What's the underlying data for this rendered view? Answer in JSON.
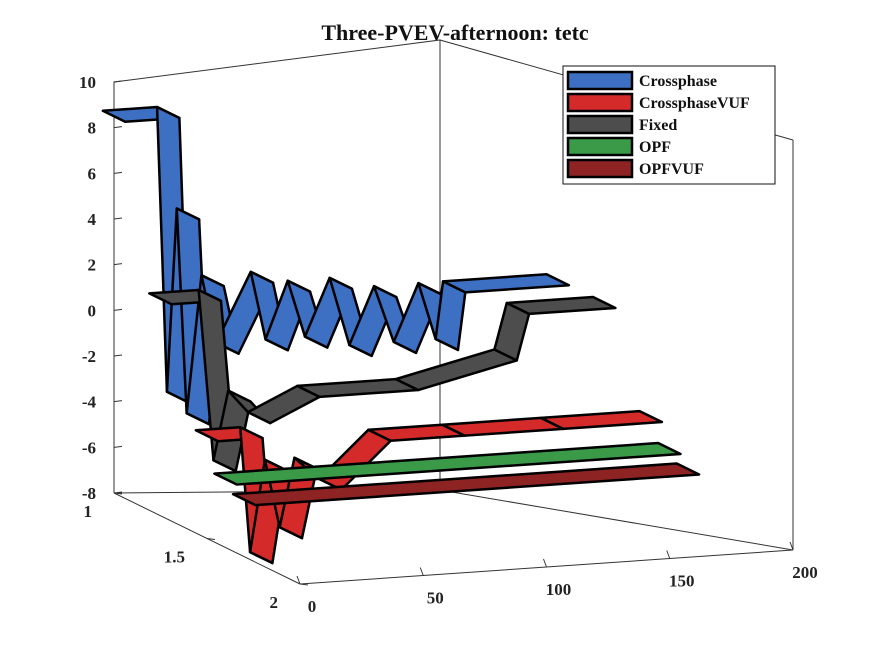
{
  "chart_data": {
    "type": "ribbon3d",
    "title": "Three-PVEV-afternoon: tetc",
    "xlabel": "",
    "ylabel": "",
    "zlabel": "",
    "xlim": [
      0,
      200
    ],
    "ylim": [
      1,
      2
    ],
    "zlim": [
      -8,
      10
    ],
    "xticks": [
      "0",
      "50",
      "100",
      "150",
      "200"
    ],
    "yticks": [
      "1",
      "1.5",
      "2"
    ],
    "zticks": [
      "-8",
      "-6",
      "-4",
      "-2",
      "0",
      "2",
      "4",
      "6",
      "8",
      "10"
    ],
    "legend_position": "top-right",
    "series": [
      {
        "name": "Crossphase",
        "color": "#3d6fc2",
        "y_position": 1.0,
        "profile": [
          {
            "x": 0,
            "v": 8.5
          },
          {
            "x": 22,
            "v": 8.5
          },
          {
            "x": 26,
            "v": -4
          },
          {
            "x": 30,
            "v": 4
          },
          {
            "x": 34,
            "v": -5
          },
          {
            "x": 40,
            "v": 1
          },
          {
            "x": 46,
            "v": -2
          },
          {
            "x": 60,
            "v": 1
          },
          {
            "x": 66,
            "v": -2
          },
          {
            "x": 75,
            "v": 0.5
          },
          {
            "x": 82,
            "v": -2
          },
          {
            "x": 92,
            "v": 0.5
          },
          {
            "x": 100,
            "v": -2.5
          },
          {
            "x": 110,
            "v": 0
          },
          {
            "x": 118,
            "v": -2.5
          },
          {
            "x": 128,
            "v": 0
          },
          {
            "x": 135,
            "v": -2.5
          },
          {
            "x": 138,
            "v": 0
          },
          {
            "x": 180,
            "v": 0
          }
        ]
      },
      {
        "name": "CrossphaseVUF",
        "color": "#d42a2a",
        "y_position": 1.5,
        "profile": [
          {
            "x": 0,
            "v": -3.5
          },
          {
            "x": 18,
            "v": -3.5
          },
          {
            "x": 22,
            "v": -9
          },
          {
            "x": 28,
            "v": -5
          },
          {
            "x": 34,
            "v": -8
          },
          {
            "x": 40,
            "v": -5
          },
          {
            "x": 50,
            "v": -6
          },
          {
            "x": 70,
            "v": -4
          },
          {
            "x": 100,
            "v": -4
          },
          {
            "x": 140,
            "v": -4
          },
          {
            "x": 180,
            "v": -4
          }
        ]
      },
      {
        "name": "Fixed",
        "color": "#4d4d4d",
        "y_position": 1.25,
        "profile": [
          {
            "x": 0,
            "v": 1.5
          },
          {
            "x": 20,
            "v": 1.5
          },
          {
            "x": 26,
            "v": -6
          },
          {
            "x": 32,
            "v": -3
          },
          {
            "x": 40,
            "v": -4
          },
          {
            "x": 60,
            "v": -3
          },
          {
            "x": 100,
            "v": -3
          },
          {
            "x": 140,
            "v": -2
          },
          {
            "x": 145,
            "v": 0
          },
          {
            "x": 180,
            "v": 0
          }
        ]
      },
      {
        "name": "OPF",
        "color": "#3a9a48",
        "y_position": 1.6,
        "profile": [
          {
            "x": 0,
            "v": -5
          },
          {
            "x": 180,
            "v": -5
          }
        ]
      },
      {
        "name": "OPFVUF",
        "color": "#8e2323",
        "y_position": 1.7,
        "profile": [
          {
            "x": 0,
            "v": -5.5
          },
          {
            "x": 180,
            "v": -5.5
          }
        ]
      }
    ]
  }
}
